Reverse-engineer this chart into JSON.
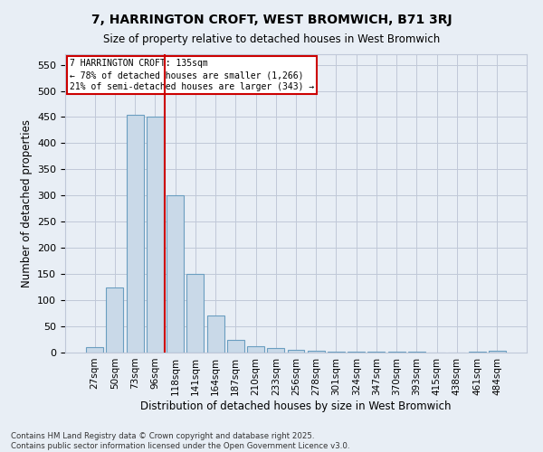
{
  "title": "7, HARRINGTON CROFT, WEST BROMWICH, B71 3RJ",
  "subtitle": "Size of property relative to detached houses in West Bromwich",
  "xlabel": "Distribution of detached houses by size in West Bromwich",
  "ylabel": "Number of detached properties",
  "categories": [
    "27sqm",
    "50sqm",
    "73sqm",
    "96sqm",
    "118sqm",
    "141sqm",
    "164sqm",
    "187sqm",
    "210sqm",
    "233sqm",
    "256sqm",
    "278sqm",
    "301sqm",
    "324sqm",
    "347sqm",
    "370sqm",
    "393sqm",
    "415sqm",
    "438sqm",
    "461sqm",
    "484sqm"
  ],
  "values": [
    10,
    125,
    455,
    450,
    300,
    150,
    70,
    25,
    12,
    8,
    5,
    3,
    2,
    1,
    1,
    1,
    1,
    0,
    0,
    1,
    3
  ],
  "bar_color": "#c9d9e8",
  "bar_edge_color": "#6a9ec0",
  "grid_color": "#c0c8d8",
  "bg_color": "#e8eef5",
  "vline_pos": 3.5,
  "vline_color": "#cc0000",
  "annotation_text": "7 HARRINGTON CROFT: 135sqm\n← 78% of detached houses are smaller (1,266)\n21% of semi-detached houses are larger (343) →",
  "annotation_box_color": "#ffffff",
  "annotation_border_color": "#cc0000",
  "footer": "Contains HM Land Registry data © Crown copyright and database right 2025.\nContains public sector information licensed under the Open Government Licence v3.0.",
  "ylim": [
    0,
    570
  ],
  "yticks": [
    0,
    50,
    100,
    150,
    200,
    250,
    300,
    350,
    400,
    450,
    500,
    550
  ],
  "title_fontsize": 10,
  "subtitle_fontsize": 8.5
}
